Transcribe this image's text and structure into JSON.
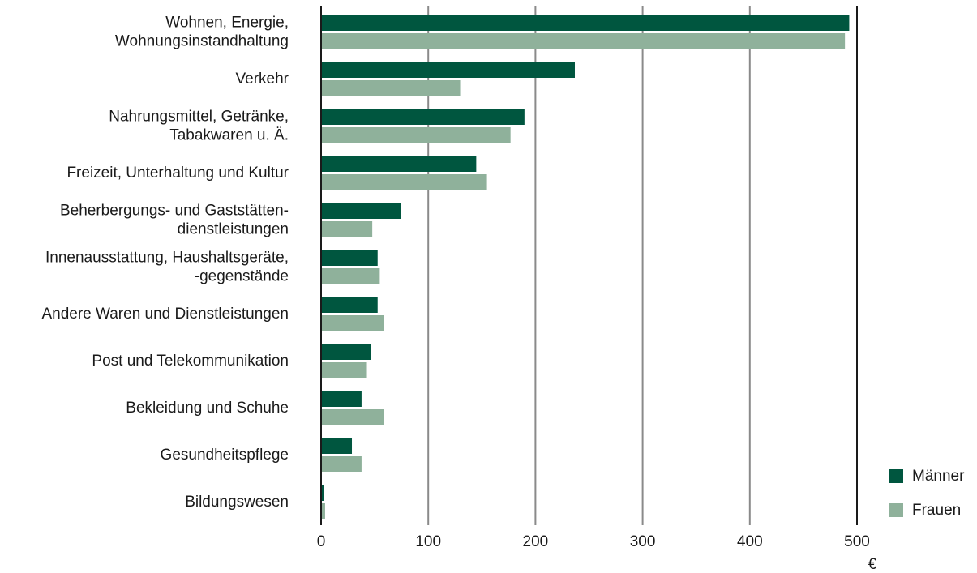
{
  "chart_data": {
    "type": "bar",
    "orientation": "horizontal",
    "categories": [
      "Wohnen, Energie,\nWohnungsinstandhaltung",
      "Verkehr",
      "Nahrungsmittel, Getränke,\nTabakwaren u. Ä.",
      "Freizeit, Unterhaltung und Kultur",
      "Beherbergungs- und Gaststätten-\ndienstleistungen",
      "Innenausstattung, Haushaltsgeräte,\n-gegenstände",
      "Andere Waren und Dienstleistungen",
      "Post und Telekommunikation",
      "Bekleidung und Schuhe",
      "Gesundheitspflege",
      "Bildungswesen"
    ],
    "series": [
      {
        "name": "Männer",
        "color": "#00563f",
        "values": [
          492,
          236,
          189,
          144,
          74,
          52,
          52,
          46,
          37,
          28,
          2
        ]
      },
      {
        "name": "Frauen",
        "color": "#8fb19b",
        "values": [
          488,
          129,
          176,
          154,
          47,
          54,
          58,
          42,
          58,
          37,
          3
        ]
      }
    ],
    "xlabel": "€",
    "xlim": [
      0,
      500
    ],
    "xticks": [
      0,
      100,
      200,
      300,
      400,
      500
    ],
    "grid": true,
    "legend": "lower right"
  }
}
